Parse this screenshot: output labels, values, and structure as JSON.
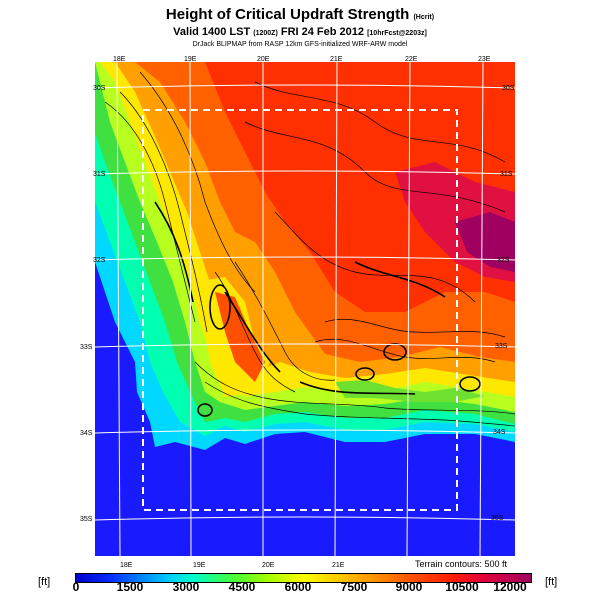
{
  "header": {
    "title": "Height of Critical Updraft Strength",
    "title_units": "(Hcrit)",
    "valid_main": "Valid 1400 LST",
    "valid_small1": "(1200Z)",
    "valid_date": "FRI 24 Feb 2012",
    "valid_small2": "[10hrFcst@2203z]",
    "credit": "DrJack BLIPMAP from RASP 12km GFS-initialized WRF-ARW model"
  },
  "map": {
    "lon_labels_top": [
      "18E",
      "19E",
      "20E",
      "21E",
      "22E",
      "23E"
    ],
    "lon_labels_bottom": [
      "18E",
      "19E",
      "20E",
      "21E"
    ],
    "lat_labels_left": [
      "30S",
      "31S",
      "32S",
      "33S",
      "34S",
      "35S"
    ],
    "lat_labels_right": [
      "30S",
      "31S",
      "32S",
      "33S",
      "34S",
      "35S"
    ],
    "terrain_note": "Terrain contours: 500 ft",
    "colors": {
      "ocean": "#1a1aff",
      "high": "#ff3000",
      "peak": "#a00060"
    }
  },
  "colorbar": {
    "unit_left": "[ft]",
    "unit_right": "[ft]",
    "ticks": [
      "0",
      "1500",
      "3000",
      "4500",
      "6000",
      "7500",
      "9000",
      "10500",
      "12000"
    ]
  }
}
